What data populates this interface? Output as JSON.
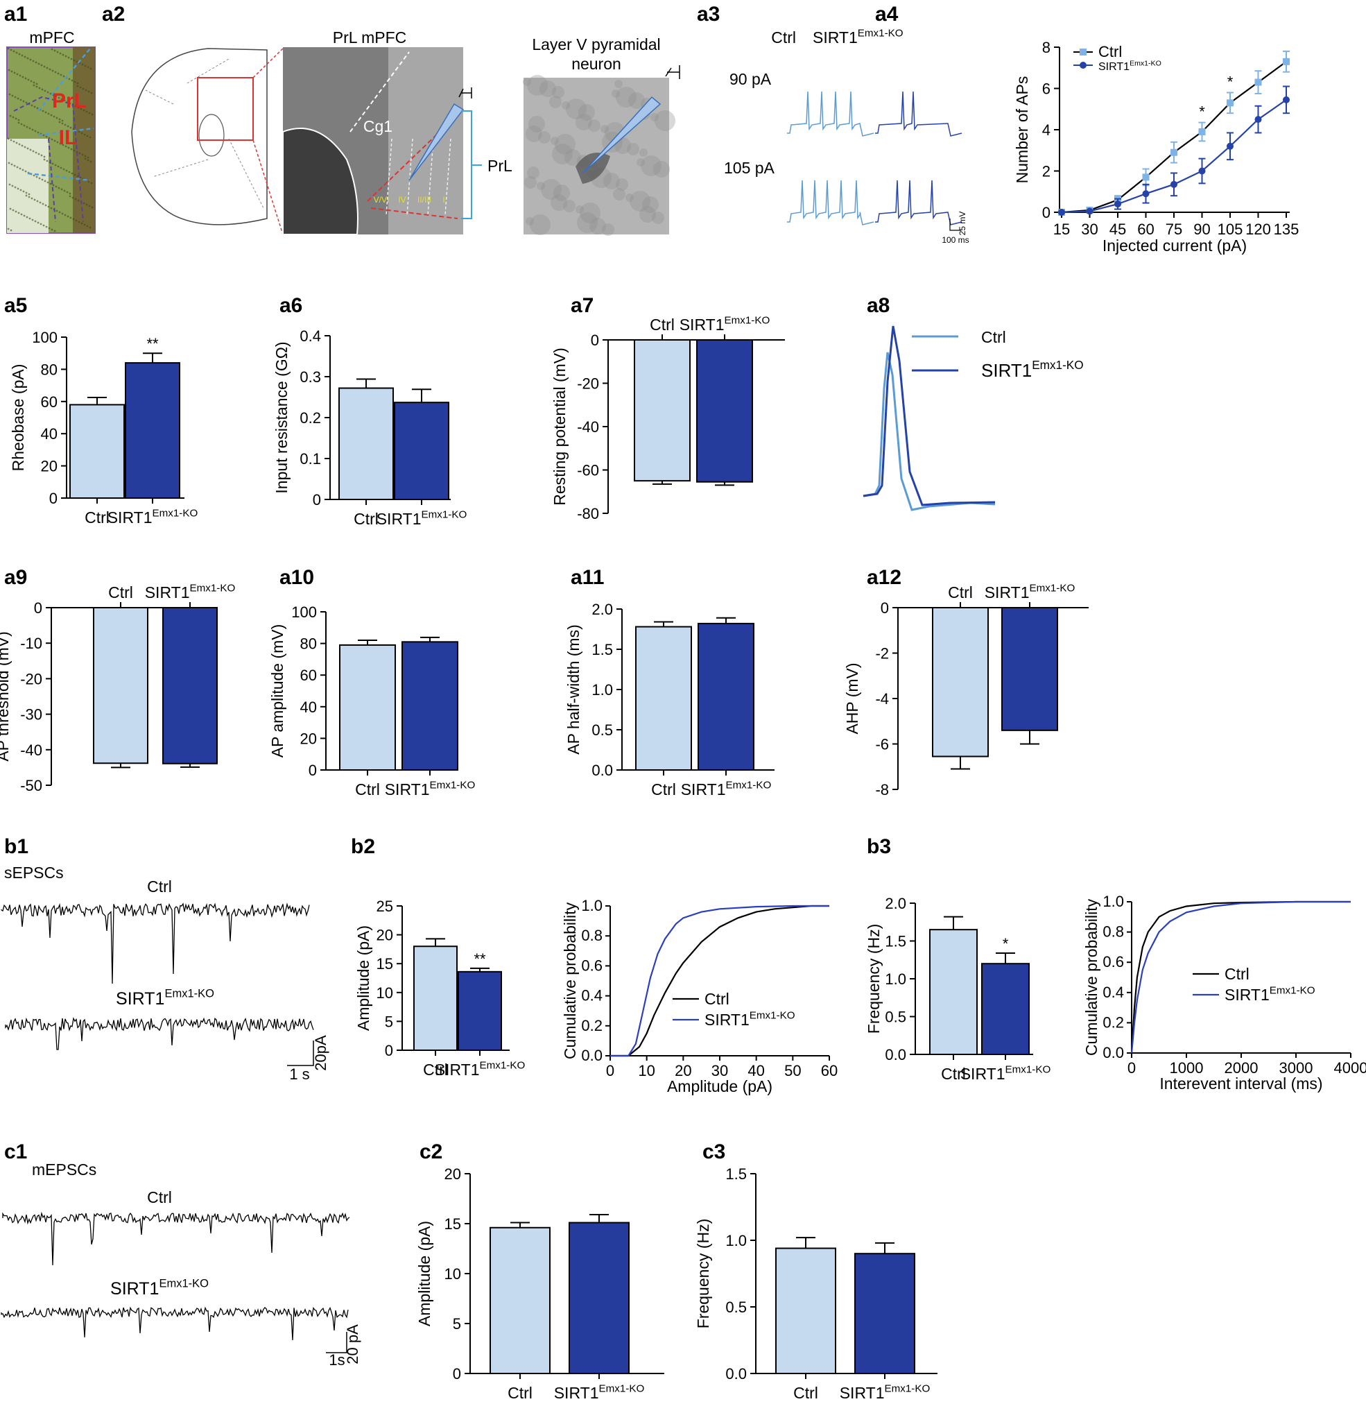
{
  "colors": {
    "ctrl_fill": "#c5d9ef",
    "ko_fill": "#263c9c",
    "ctrl_line": "#5b9bd5",
    "ko_line": "#2442a8",
    "ctrl_cum": "#000000",
    "ko_cum": "#2a3fc0",
    "a4_ctrl": "#7fb2e5",
    "a4_ko": "#2442a8"
  },
  "images": {
    "a1": {
      "panel": "a1",
      "title": "mPFC",
      "labels": [
        "PrL",
        "IL"
      ]
    },
    "a2": {
      "panel": "a2",
      "slice_title": "PrL mPFC",
      "neuron_title": "Layer V pyramidal neuron",
      "region_labels": [
        "Cg1",
        "PrL"
      ],
      "layer_labels": [
        "V/VI",
        "IV",
        "II/III",
        "I"
      ]
    }
  },
  "traces": {
    "a3": {
      "panel": "a3",
      "cols": [
        "Ctrl",
        "SIRT1Emx1-KO"
      ],
      "rows": [
        "90 pA",
        "105 pA"
      ],
      "scale_y": "25 mV",
      "scale_x": "100 ms"
    },
    "a8": {
      "panel": "a8",
      "legend": [
        "Ctrl",
        "SIRT1Emx1-KO"
      ]
    },
    "b1": {
      "panel": "b1",
      "title": "sEPSCs",
      "rows": [
        "Ctrl",
        "SIRT1Emx1-KO"
      ],
      "scale_y": "20pA",
      "scale_x": "1 s"
    },
    "c1": {
      "panel": "c1",
      "title": "mEPSCs",
      "rows": [
        "Ctrl",
        "SIRT1Emx1-KO"
      ],
      "scale_y": "20 pA",
      "scale_x": "1s"
    }
  },
  "chart_data": [
    {
      "panel": "a4",
      "type": "line",
      "x": [
        15,
        30,
        45,
        60,
        75,
        90,
        105,
        120,
        135
      ],
      "xlabel": "Injected current (pA)",
      "ylabel": "Number of APs",
      "ylim": [
        0,
        8
      ],
      "series": [
        {
          "name": "Ctrl",
          "values": [
            0,
            0.1,
            0.6,
            1.7,
            2.9,
            3.9,
            5.3,
            6.3,
            7.3
          ],
          "err": [
            0,
            0.05,
            0.2,
            0.4,
            0.5,
            0.45,
            0.5,
            0.55,
            0.5
          ]
        },
        {
          "name": "SIRT1Emx1-KO",
          "values": [
            0,
            0.05,
            0.4,
            0.9,
            1.35,
            2.0,
            3.2,
            4.5,
            5.45
          ],
          "err": [
            0,
            0.05,
            0.25,
            0.45,
            0.55,
            0.6,
            0.65,
            0.65,
            0.65
          ]
        }
      ],
      "annotations": [
        {
          "x": 90,
          "text": "*"
        },
        {
          "x": 105,
          "text": "*"
        }
      ],
      "legend": "top-left"
    },
    {
      "panel": "a5",
      "type": "bar",
      "categories": [
        "Ctrl",
        "SIRT1Emx1-KO"
      ],
      "values": [
        58,
        84
      ],
      "err": [
        4.5,
        6
      ],
      "ylabel": "Rheobase (pA)",
      "ylim": [
        0,
        100
      ],
      "ticks": [
        0,
        20,
        40,
        60,
        80,
        100
      ],
      "signif": [
        "",
        "**"
      ]
    },
    {
      "panel": "a6",
      "type": "bar",
      "categories": [
        "Ctrl",
        "SIRT1Emx1-KO"
      ],
      "values": [
        0.272,
        0.237
      ],
      "err": [
        0.022,
        0.032
      ],
      "ylabel": "Input resistance (GΩ)",
      "ylim": [
        0,
        0.4
      ],
      "ticks": [
        0.0,
        0.1,
        0.2,
        0.3,
        0.4
      ]
    },
    {
      "panel": "a7",
      "type": "bar",
      "categories": [
        "Ctrl",
        "SIRT1Emx1-KO"
      ],
      "values": [
        -65,
        -65.5
      ],
      "err": [
        1.5,
        1.5
      ],
      "ylabel": "Resting potential (mV)",
      "ylim": [
        -80,
        0
      ],
      "ticks": [
        0,
        -20,
        -40,
        -60,
        -80
      ]
    },
    {
      "panel": "a9",
      "type": "bar",
      "categories": [
        "Ctrl",
        "SIRT1Emx1-KO"
      ],
      "values": [
        -43.8,
        -43.9
      ],
      "err": [
        1.2,
        1.0
      ],
      "ylabel": "AP threshold (mV)",
      "ylim": [
        -50,
        0
      ],
      "ticks": [
        0,
        -10,
        -20,
        -30,
        -40,
        -50
      ]
    },
    {
      "panel": "a10",
      "type": "bar",
      "categories": [
        "Ctrl",
        "SIRT1Emx1-KO"
      ],
      "values": [
        79,
        81
      ],
      "err": [
        3,
        2.8
      ],
      "ylabel": "AP amplitude (mV)",
      "ylim": [
        0,
        100
      ],
      "ticks": [
        0,
        20,
        40,
        60,
        80,
        100
      ]
    },
    {
      "panel": "a11",
      "type": "bar",
      "categories": [
        "Ctrl",
        "SIRT1Emx1-KO"
      ],
      "values": [
        1.78,
        1.82
      ],
      "err": [
        0.06,
        0.07
      ],
      "ylabel": "AP half-width (ms)",
      "ylim": [
        0,
        2.0
      ],
      "ticks": [
        0.0,
        0.5,
        1.0,
        1.5,
        2.0
      ],
      "tickfmt": 1
    },
    {
      "panel": "a12",
      "type": "bar",
      "categories": [
        "Ctrl",
        "SIRT1Emx1-KO"
      ],
      "values": [
        -6.55,
        -5.4
      ],
      "err": [
        0.55,
        0.6
      ],
      "ylabel": "AHP (mV)",
      "ylim": [
        -8,
        0
      ],
      "ticks": [
        0,
        -2,
        -4,
        -6,
        -8
      ]
    },
    {
      "panel": "b2",
      "type": "bar",
      "categories": [
        "Ctrl",
        "SIRT1Emx1-KO"
      ],
      "values": [
        18,
        13.6
      ],
      "err": [
        1.3,
        0.6
      ],
      "ylabel": "Amplitude (pA)",
      "ylim": [
        0,
        25
      ],
      "ticks": [
        0,
        5,
        10,
        15,
        20,
        25
      ],
      "signif": [
        "",
        "**"
      ]
    },
    {
      "panel": "b2-cum",
      "type": "line",
      "xlabel": "Amplitude (pA)",
      "ylabel": "Cumulative probability",
      "xlim": [
        0,
        60
      ],
      "ylim": [
        0,
        1.0
      ],
      "legend": "bottom-right",
      "series": [
        {
          "name": "Ctrl",
          "x": [
            0,
            5,
            8,
            10,
            12,
            15,
            18,
            20,
            25,
            30,
            35,
            40,
            45,
            50,
            55,
            60
          ],
          "values": [
            0,
            0,
            0.06,
            0.15,
            0.27,
            0.42,
            0.55,
            0.62,
            0.76,
            0.86,
            0.92,
            0.96,
            0.98,
            0.99,
            1.0,
            1.0
          ]
        },
        {
          "name": "SIRT1Emx1-KO",
          "x": [
            0,
            5,
            7,
            9,
            11,
            13,
            15,
            18,
            20,
            25,
            30,
            40,
            50,
            60
          ],
          "values": [
            0,
            0,
            0.08,
            0.3,
            0.52,
            0.68,
            0.78,
            0.88,
            0.92,
            0.96,
            0.98,
            0.995,
            1.0,
            1.0
          ]
        }
      ]
    },
    {
      "panel": "b3",
      "type": "bar",
      "categories": [
        "Ctrl",
        "SIRT1Emx1-KO"
      ],
      "values": [
        1.65,
        1.2
      ],
      "err": [
        0.17,
        0.14
      ],
      "ylabel": "Frequency (Hz)",
      "ylim": [
        0,
        2.0
      ],
      "ticks": [
        0.0,
        0.5,
        1.0,
        1.5,
        2.0
      ],
      "tickfmt": 1,
      "signif": [
        "",
        "*"
      ]
    },
    {
      "panel": "b3-cum",
      "type": "line",
      "xlabel": "Interevent interval (ms)",
      "ylabel": "Cumulative probability",
      "xlim": [
        0,
        4000
      ],
      "ylim": [
        0,
        1.0
      ],
      "legend": "center-right",
      "series": [
        {
          "name": "Ctrl",
          "x": [
            0,
            50,
            100,
            200,
            300,
            500,
            700,
            1000,
            1500,
            2000,
            3000,
            4000
          ],
          "values": [
            0,
            0.3,
            0.5,
            0.7,
            0.8,
            0.9,
            0.94,
            0.97,
            0.99,
            0.995,
            1.0,
            1.0
          ]
        },
        {
          "name": "SIRT1Emx1-KO",
          "x": [
            0,
            50,
            100,
            200,
            300,
            500,
            700,
            1000,
            1500,
            2000,
            3000,
            4000
          ],
          "values": [
            0,
            0.2,
            0.35,
            0.55,
            0.66,
            0.8,
            0.87,
            0.93,
            0.97,
            0.99,
            1.0,
            1.0
          ]
        }
      ]
    },
    {
      "panel": "c2",
      "type": "bar",
      "categories": [
        "Ctrl",
        "SIRT1Emx1-KO"
      ],
      "values": [
        14.6,
        15.1
      ],
      "err": [
        0.5,
        0.8
      ],
      "ylabel": "Amplitude  (pA)",
      "ylim": [
        0,
        20
      ],
      "ticks": [
        0,
        5,
        10,
        15,
        20
      ]
    },
    {
      "panel": "c3",
      "type": "bar",
      "categories": [
        "Ctrl",
        "SIRT1Emx1-KO"
      ],
      "values": [
        0.94,
        0.9
      ],
      "err": [
        0.08,
        0.08
      ],
      "ylabel": "Frequency (Hz)",
      "ylim": [
        0,
        1.5
      ],
      "ticks": [
        0.0,
        0.5,
        1.0,
        1.5
      ],
      "tickfmt": 1
    }
  ]
}
